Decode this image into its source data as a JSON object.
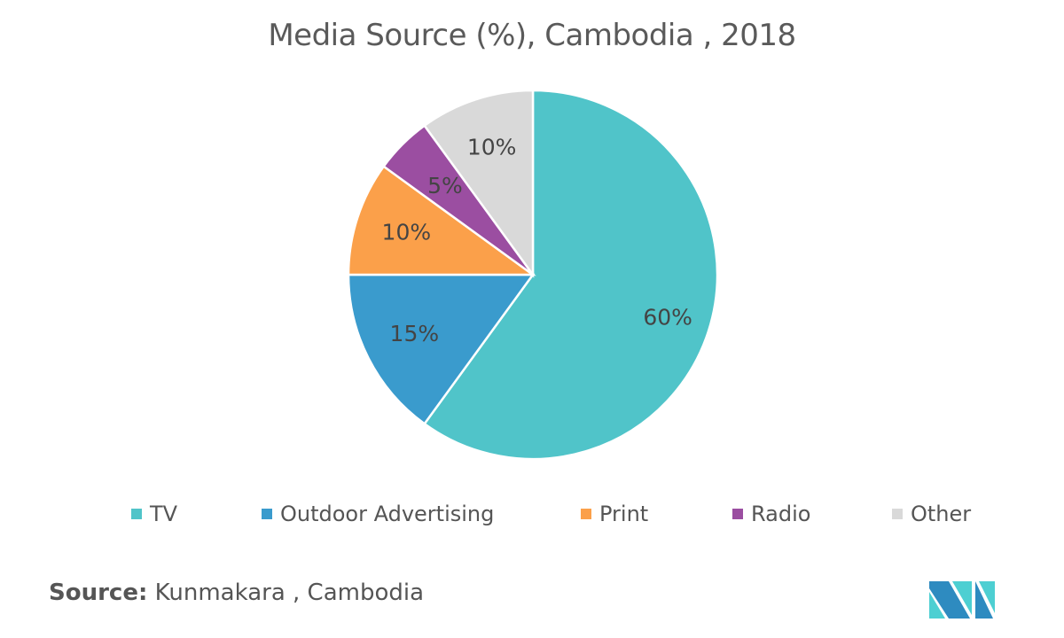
{
  "chart_data": {
    "type": "pie",
    "title": "Media Source (%), Cambodia , 2018",
    "start": "top",
    "direction": "clockwise",
    "legend_position": "bottom",
    "slices": [
      {
        "name": "TV",
        "value": 60,
        "label": "60%",
        "color": "#50C4C9"
      },
      {
        "name": "Outdoor Advertising",
        "value": 15,
        "label": "15%",
        "color": "#3A9BCD"
      },
      {
        "name": "Print",
        "value": 10,
        "label": "10%",
        "color": "#FBA04A"
      },
      {
        "name": "Radio",
        "value": 5,
        "label": "5%",
        "color": "#9B4EA1"
      },
      {
        "name": "Other",
        "value": 10,
        "label": "10%",
        "color": "#D9D9D9"
      }
    ]
  },
  "source": {
    "label": "Source:",
    "text": " Kunmakara , Cambodia"
  },
  "logo": {
    "name": "mordor-intelligence-logo",
    "colors": [
      "#2E8BC0",
      "#4DCFD2"
    ]
  }
}
